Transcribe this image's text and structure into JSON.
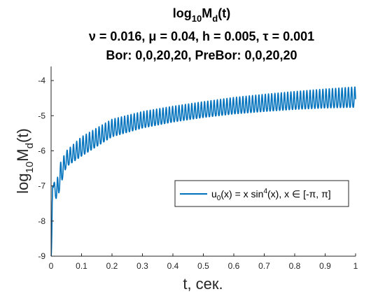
{
  "chart_data": {
    "type": "line",
    "title": {
      "line1_main": "log",
      "line1_sub": "10",
      "line1_main2": "M",
      "line1_sub2": "d",
      "line1_tail": "(t)",
      "line2": "ν = 0.016, μ = 0.04, h = 0.005, τ = 0.001",
      "line3": "Bor: 0,0,20,20, PreBor: 0,0,20,20"
    },
    "xlabel": "t, сек.",
    "ylabel": {
      "main": "log",
      "sub": "10",
      "main2": "M",
      "sub2": "d",
      "tail": "(t)"
    },
    "xlim": [
      0,
      1
    ],
    "ylim": [
      -9,
      -3.6
    ],
    "x_ticks": [
      "0",
      "0.1",
      "0.2",
      "0.3",
      "0.4",
      "0.5",
      "0.6",
      "0.7",
      "0.8",
      "0.9",
      "1"
    ],
    "y_ticks": [
      "-9",
      "-8",
      "-7",
      "-6",
      "-5",
      "-4"
    ],
    "grid": false,
    "legend_position": "right",
    "series": [
      {
        "name": "u0(x) = x sin4(x), x ∈ [-π, π]",
        "color": "#0072BD",
        "description_points": {
          "t": [
            0.0,
            0.005,
            0.01,
            0.02,
            0.03,
            0.05,
            0.1,
            0.2,
            0.3,
            0.4,
            0.5,
            0.6,
            0.7,
            0.8,
            0.9,
            1.0
          ],
          "upper": [
            -9.0,
            -6.7,
            -6.9,
            -6.8,
            -6.35,
            -6.0,
            -5.6,
            -5.1,
            -4.88,
            -4.73,
            -4.6,
            -4.48,
            -4.39,
            -4.31,
            -4.24,
            -4.18
          ],
          "lower": [
            -9.0,
            -7.0,
            -7.2,
            -7.45,
            -7.0,
            -6.45,
            -6.15,
            -5.6,
            -5.35,
            -5.18,
            -5.05,
            -4.95,
            -4.88,
            -4.82,
            -4.78,
            -4.76
          ]
        },
        "oscillation_period": 0.0105
      }
    ],
    "legend": {
      "u": "u",
      "u_sub": "0",
      "p1": "(x) = x sin",
      "sup": "4",
      "p2": "(x), x ∈ [-π, π]"
    }
  }
}
